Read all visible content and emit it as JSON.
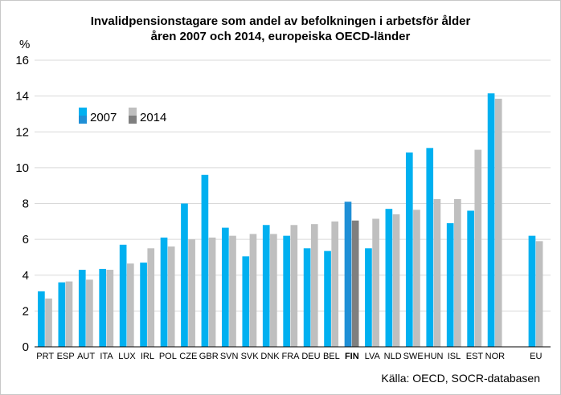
{
  "chart_data": {
    "type": "bar",
    "title_line1": "Invalidpensionstagare som andel av befolkningen i arbetsför ålder",
    "title_line2": "åren 2007 och 2014, europeiska OECD-länder",
    "ylabel": "%",
    "ylim": [
      0,
      16
    ],
    "yticks": [
      "0",
      "2",
      "4",
      "6",
      "8",
      "10",
      "12",
      "14",
      "16"
    ],
    "grid": true,
    "legend_position": "top-left",
    "highlight_category": "FIN",
    "categories": [
      "PRT",
      "ESP",
      "AUT",
      "ITA",
      "LUX",
      "IRL",
      "POL",
      "CZE",
      "GBR",
      "SVN",
      "SVK",
      "DNK",
      "FRA",
      "DEU",
      "BEL",
      "FIN",
      "LVA",
      "NLD",
      "SWE",
      "HUN",
      "ISL",
      "EST",
      "NOR",
      "",
      "EU"
    ],
    "series": [
      {
        "name": "2007",
        "color": "#00b0f0",
        "highlight_color": "#1f8fd6",
        "values": [
          3.1,
          3.6,
          4.3,
          4.35,
          5.7,
          4.7,
          6.1,
          8.0,
          9.6,
          6.65,
          5.05,
          6.8,
          6.2,
          5.5,
          5.35,
          8.1,
          5.5,
          7.7,
          10.85,
          11.1,
          6.9,
          7.6,
          14.15,
          null,
          6.2
        ]
      },
      {
        "name": "2014",
        "color": "#bfbfbf",
        "highlight_color": "#7f7f7f",
        "values": [
          2.7,
          3.65,
          3.75,
          4.3,
          4.65,
          5.5,
          5.6,
          6.0,
          6.1,
          6.2,
          6.3,
          6.3,
          6.8,
          6.85,
          7.0,
          7.05,
          7.15,
          7.4,
          7.65,
          8.25,
          8.25,
          11.0,
          13.85,
          null,
          5.9
        ]
      }
    ]
  },
  "source": "Källa: OECD, SOCR-databasen"
}
